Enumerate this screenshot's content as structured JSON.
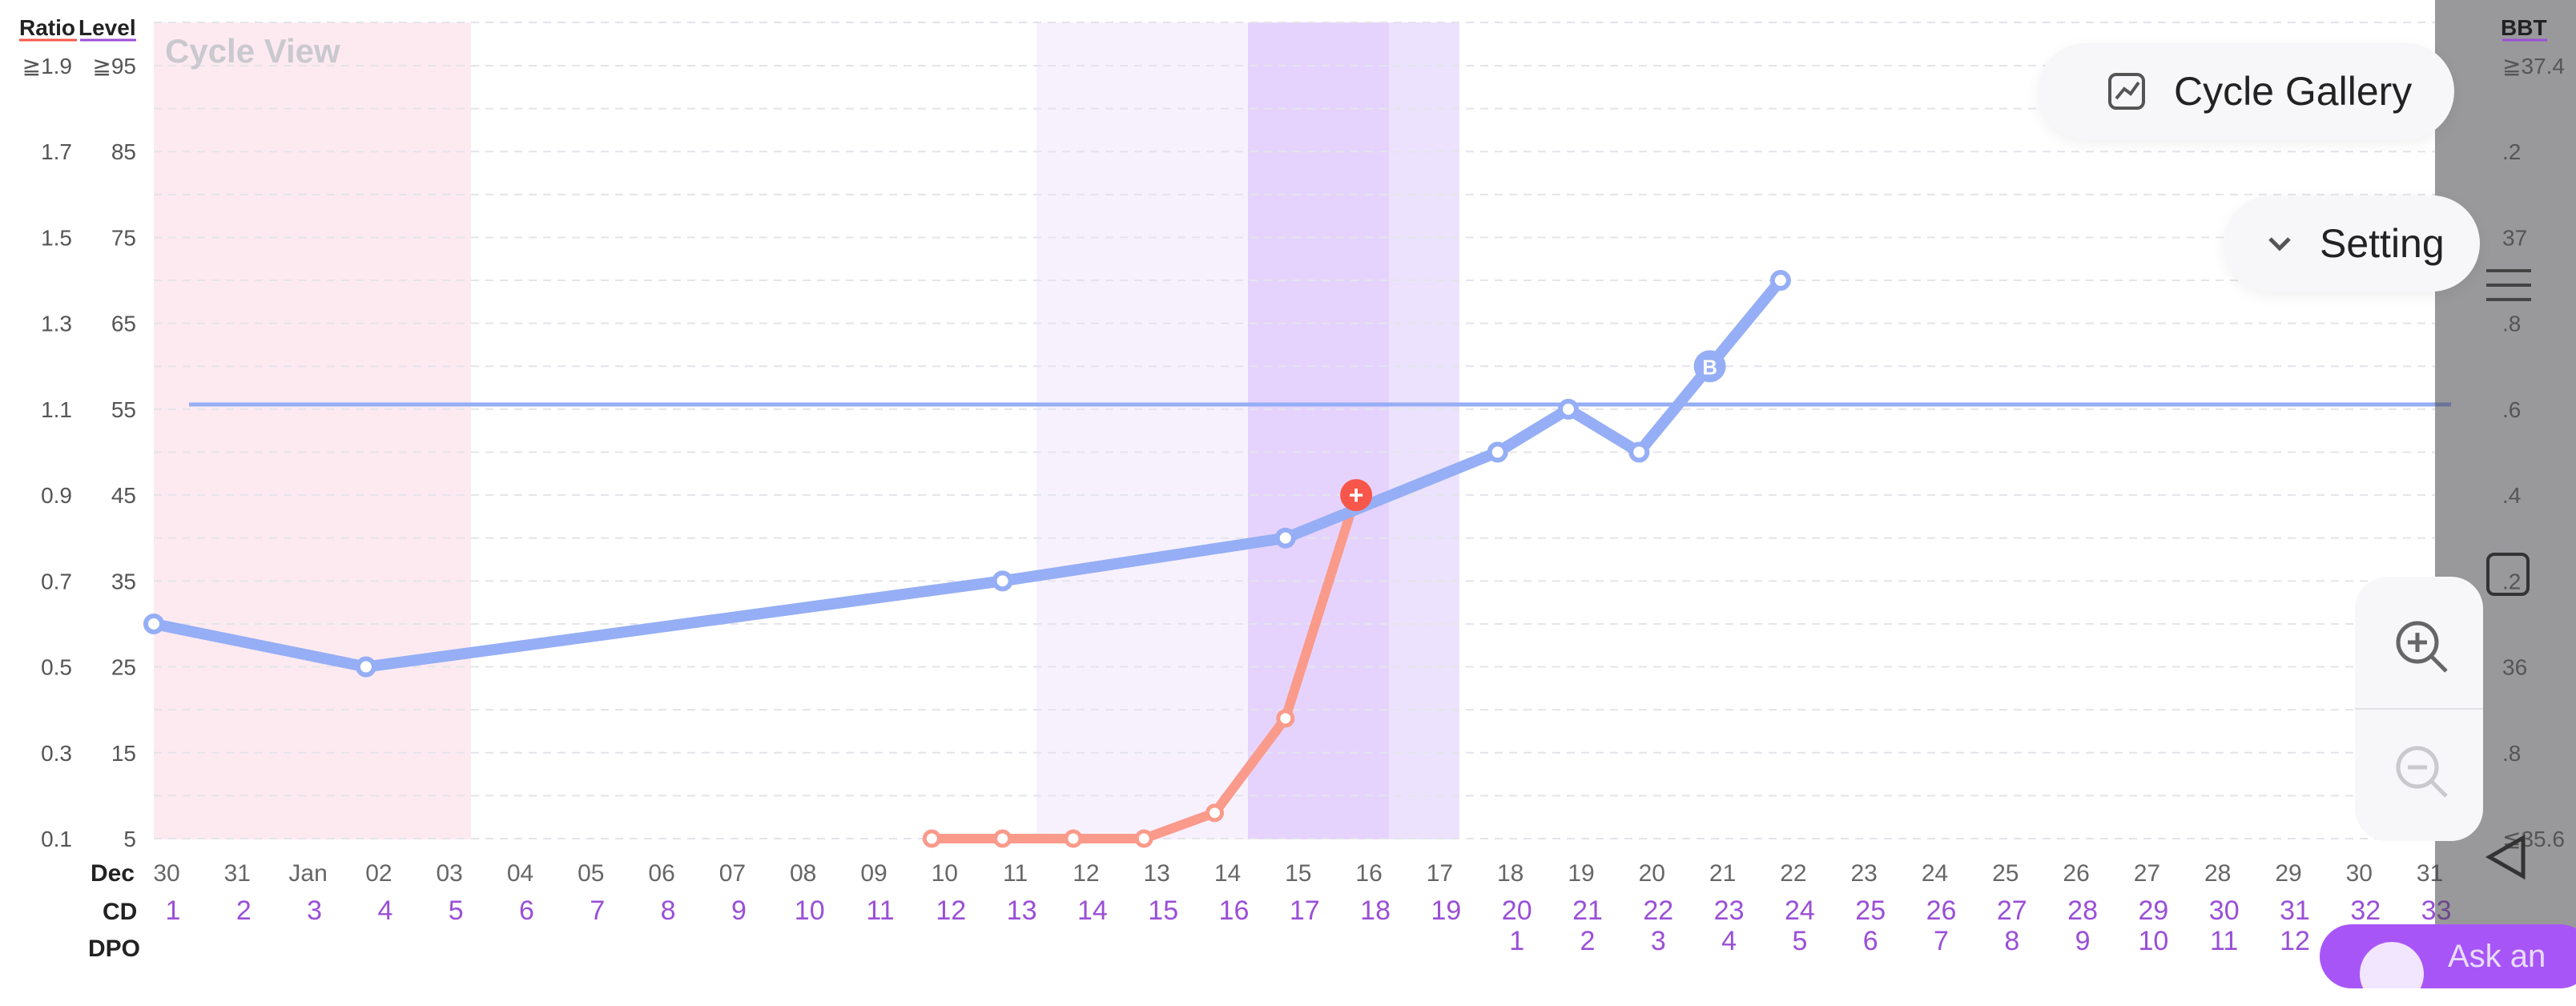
{
  "header": {
    "ratio_label": "Ratio",
    "level_label": "Level",
    "cycle_view": "Cycle View",
    "bbt_label": "BBT"
  },
  "left_axis": {
    "ratio_ticks": [
      "≧1.9",
      "1.7",
      "1.5",
      "1.3",
      "1.1",
      "0.9",
      "0.7",
      "0.5",
      "0.3",
      "0.1"
    ],
    "level_ticks": [
      "≧95",
      "85",
      "75",
      "65",
      "55",
      "45",
      "35",
      "25",
      "15",
      "5"
    ]
  },
  "right_axis": {
    "bbt_ticks": [
      "≧37.4",
      ".2",
      "37",
      ".8",
      ".6",
      ".4",
      ".2",
      "36",
      ".8",
      "≦35.6"
    ]
  },
  "buttons": {
    "cycle_gallery": "Cycle Gallery",
    "setting": "Setting",
    "ask": "Ask an"
  },
  "rows": {
    "cd": "CD",
    "dpo": "DPO"
  },
  "dates": [
    "30",
    "31",
    "Jan",
    "02",
    "03",
    "04",
    "05",
    "06",
    "07",
    "08",
    "09",
    "10",
    "11",
    "12",
    "13",
    "14",
    "15",
    "16",
    "17",
    "18",
    "19",
    "20",
    "21",
    "22",
    "23",
    "24",
    "25",
    "26",
    "27",
    "28",
    "29",
    "30",
    "31"
  ],
  "month_first": "Dec",
  "cd": [
    "1",
    "2",
    "3",
    "4",
    "5",
    "6",
    "7",
    "8",
    "9",
    "10",
    "11",
    "12",
    "13",
    "14",
    "15",
    "16",
    "17",
    "18",
    "19",
    "20",
    "21",
    "22",
    "23",
    "24",
    "25",
    "26",
    "27",
    "28",
    "29",
    "30",
    "31",
    "32",
    "33"
  ],
  "dpo": [
    "1",
    "2",
    "3",
    "4",
    "5",
    "6",
    "7",
    "8",
    "9",
    "10",
    "11",
    "12"
  ],
  "colors": {
    "period": "#fdeaf0",
    "fertile_light": "#f7f1fe",
    "fertile_mid": "#ece2fd",
    "fertile_peak": "#e6d3fd",
    "level_line": "#95aef5",
    "lh_line": "#fa9a8a",
    "lh_peak": "#f7574a",
    "cd_text": "#9a4fd6"
  },
  "chart_data": {
    "type": "line",
    "x": [
      "Dec 30",
      "Dec 31",
      "Jan 01",
      "Jan 02",
      "Jan 03",
      "Jan 04",
      "Jan 05",
      "Jan 06",
      "Jan 07",
      "Jan 08",
      "Jan 09",
      "Jan 10",
      "Jan 11",
      "Jan 12",
      "Jan 13",
      "Jan 14",
      "Jan 15",
      "Jan 16",
      "Jan 17",
      "Jan 18",
      "Jan 19",
      "Jan 20",
      "Jan 21",
      "Jan 22"
    ],
    "series": [
      {
        "name": "Level",
        "points": [
          {
            "x": "Dec 30",
            "y": 30
          },
          {
            "x": "Jan 02",
            "y": 25
          },
          {
            "x": "Jan 11",
            "y": 35
          },
          {
            "x": "Jan 15",
            "y": 40
          },
          {
            "x": "Jan 18",
            "y": 50
          },
          {
            "x": "Jan 19",
            "y": 55
          },
          {
            "x": "Jan 20",
            "y": 50
          },
          {
            "x": "Jan 21",
            "y": 60,
            "marker": "B"
          },
          {
            "x": "Jan 22",
            "y": 70
          }
        ]
      },
      {
        "name": "Ratio",
        "points": [
          {
            "x": "Jan 10",
            "y": 0.1
          },
          {
            "x": "Jan 11",
            "y": 0.1
          },
          {
            "x": "Jan 12",
            "y": 0.1
          },
          {
            "x": "Jan 13",
            "y": 0.1
          },
          {
            "x": "Jan 14",
            "y": 0.16
          },
          {
            "x": "Jan 15",
            "y": 0.38
          },
          {
            "x": "Jan 16",
            "y": 0.9,
            "marker": "+"
          }
        ]
      }
    ],
    "reference_line": 55,
    "ylim_level": [
      5,
      95
    ],
    "ylim_ratio": [
      0.1,
      1.9
    ],
    "shaded_ranges": [
      {
        "from": "Dec 30",
        "to": "Jan 03",
        "kind": "period"
      },
      {
        "from": "Jan 11",
        "to": "Jan 17",
        "kind": "fertile"
      }
    ]
  }
}
